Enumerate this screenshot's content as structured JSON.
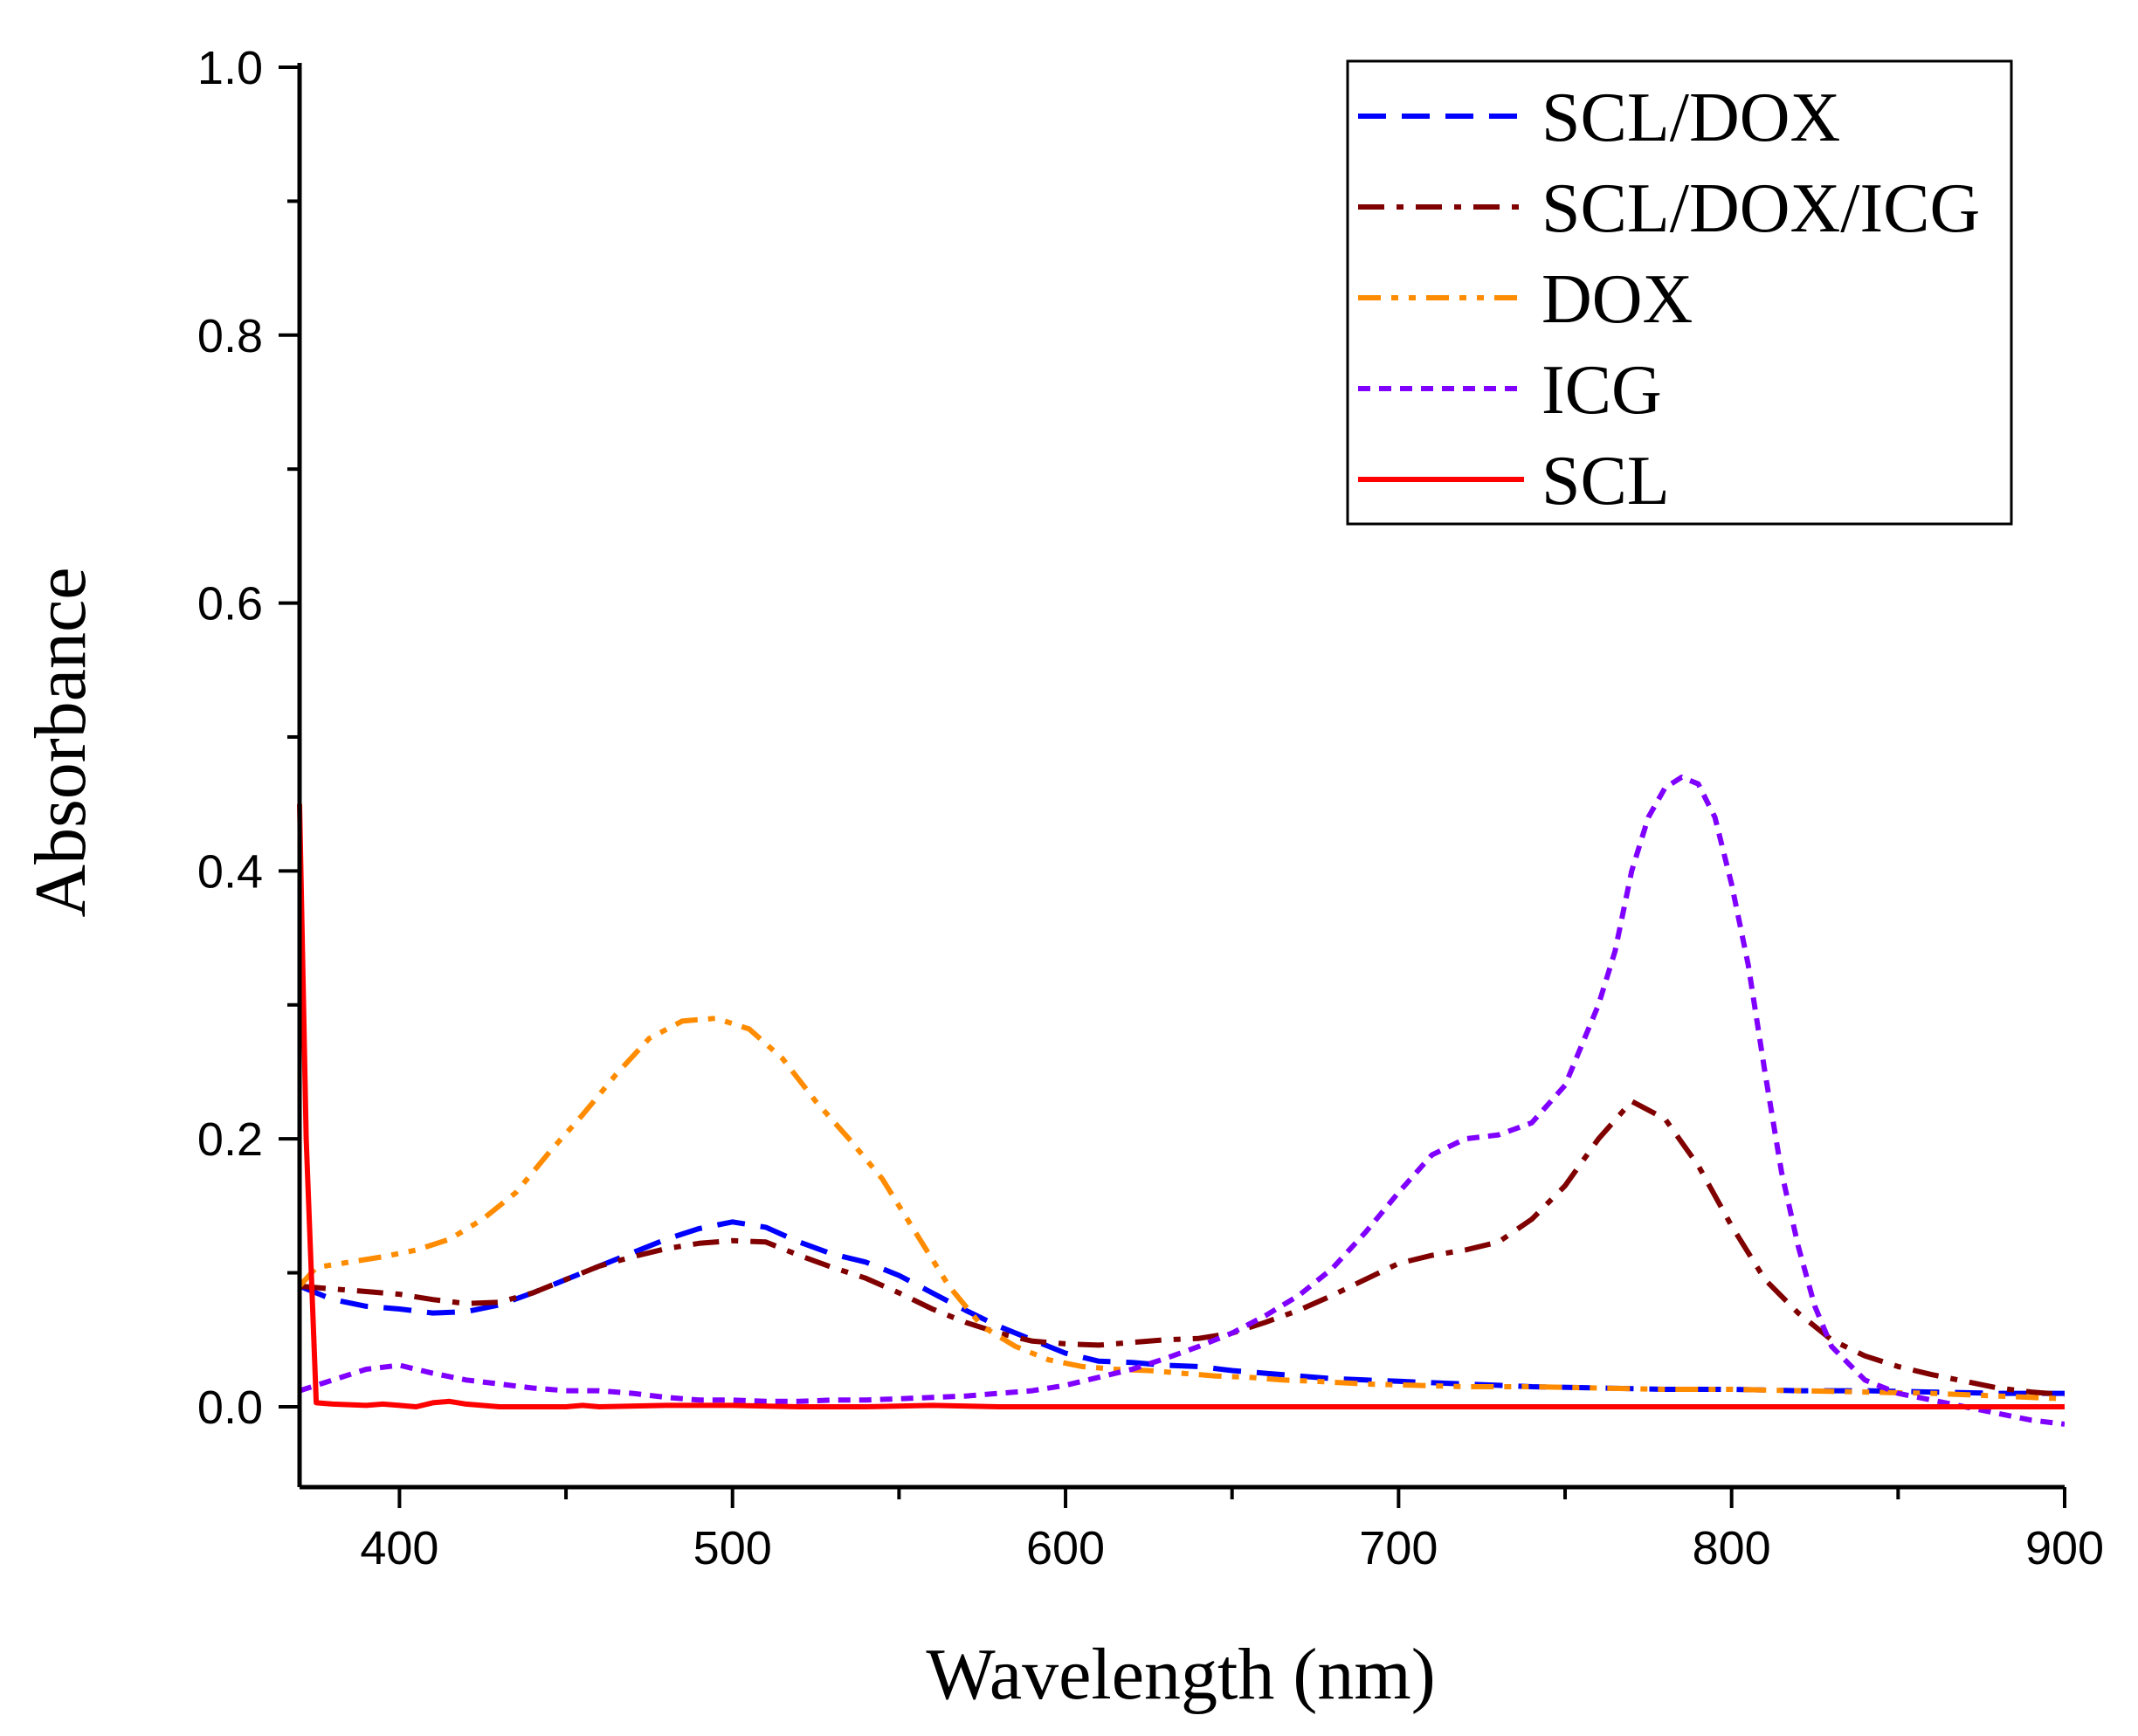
{
  "chart_data": {
    "type": "line",
    "title": "",
    "xlabel": "Wavelength (nm)",
    "ylabel": "Absorbance",
    "xlim": [
      370,
      900
    ],
    "ylim": [
      -0.06,
      1.0
    ],
    "xticks": [
      400,
      500,
      600,
      700,
      800,
      900
    ],
    "xtick_labels": [
      "400",
      "500",
      "600",
      "700",
      "800",
      "900"
    ],
    "yticks": [
      0.0,
      0.2,
      0.4,
      0.6,
      0.8,
      1.0
    ],
    "ytick_labels": [
      "0.0",
      "0.2",
      "0.4",
      "0.6",
      "0.8",
      "1.0"
    ],
    "grid": false,
    "legend_position": "top-right",
    "series": [
      {
        "name": "SCL/DOX",
        "color": "#0000ff",
        "dash": "dash",
        "points": [
          [
            370,
            0.09
          ],
          [
            380,
            0.08
          ],
          [
            390,
            0.075
          ],
          [
            400,
            0.073
          ],
          [
            410,
            0.07
          ],
          [
            420,
            0.071
          ],
          [
            430,
            0.076
          ],
          [
            440,
            0.085
          ],
          [
            450,
            0.095
          ],
          [
            460,
            0.105
          ],
          [
            470,
            0.115
          ],
          [
            480,
            0.125
          ],
          [
            490,
            0.133
          ],
          [
            500,
            0.138
          ],
          [
            510,
            0.134
          ],
          [
            520,
            0.123
          ],
          [
            530,
            0.114
          ],
          [
            540,
            0.108
          ],
          [
            550,
            0.098
          ],
          [
            560,
            0.085
          ],
          [
            570,
            0.072
          ],
          [
            580,
            0.06
          ],
          [
            590,
            0.05
          ],
          [
            600,
            0.04
          ],
          [
            610,
            0.034
          ],
          [
            620,
            0.033
          ],
          [
            630,
            0.031
          ],
          [
            640,
            0.03
          ],
          [
            650,
            0.027
          ],
          [
            660,
            0.025
          ],
          [
            670,
            0.023
          ],
          [
            680,
            0.021
          ],
          [
            690,
            0.02
          ],
          [
            700,
            0.019
          ],
          [
            710,
            0.018
          ],
          [
            720,
            0.017
          ],
          [
            730,
            0.016
          ],
          [
            740,
            0.015
          ],
          [
            760,
            0.014
          ],
          [
            780,
            0.013
          ],
          [
            800,
            0.013
          ],
          [
            820,
            0.012
          ],
          [
            840,
            0.012
          ],
          [
            860,
            0.011
          ],
          [
            880,
            0.01
          ],
          [
            900,
            0.01
          ]
        ]
      },
      {
        "name": "SCL/DOX/ICG",
        "color": "#800000",
        "dash": "dashdot",
        "points": [
          [
            370,
            0.09
          ],
          [
            380,
            0.088
          ],
          [
            390,
            0.086
          ],
          [
            400,
            0.084
          ],
          [
            410,
            0.08
          ],
          [
            420,
            0.077
          ],
          [
            430,
            0.078
          ],
          [
            440,
            0.085
          ],
          [
            450,
            0.095
          ],
          [
            460,
            0.105
          ],
          [
            470,
            0.112
          ],
          [
            480,
            0.118
          ],
          [
            490,
            0.122
          ],
          [
            500,
            0.124
          ],
          [
            510,
            0.123
          ],
          [
            520,
            0.113
          ],
          [
            530,
            0.104
          ],
          [
            540,
            0.096
          ],
          [
            550,
            0.085
          ],
          [
            560,
            0.073
          ],
          [
            570,
            0.063
          ],
          [
            580,
            0.055
          ],
          [
            590,
            0.049
          ],
          [
            600,
            0.047
          ],
          [
            610,
            0.046
          ],
          [
            620,
            0.048
          ],
          [
            630,
            0.05
          ],
          [
            640,
            0.051
          ],
          [
            650,
            0.055
          ],
          [
            660,
            0.063
          ],
          [
            670,
            0.072
          ],
          [
            680,
            0.083
          ],
          [
            690,
            0.095
          ],
          [
            700,
            0.107
          ],
          [
            710,
            0.113
          ],
          [
            720,
            0.117
          ],
          [
            730,
            0.123
          ],
          [
            740,
            0.14
          ],
          [
            750,
            0.165
          ],
          [
            760,
            0.2
          ],
          [
            770,
            0.228
          ],
          [
            780,
            0.215
          ],
          [
            790,
            0.18
          ],
          [
            800,
            0.135
          ],
          [
            810,
            0.095
          ],
          [
            820,
            0.07
          ],
          [
            830,
            0.05
          ],
          [
            840,
            0.038
          ],
          [
            850,
            0.03
          ],
          [
            860,
            0.024
          ],
          [
            870,
            0.019
          ],
          [
            880,
            0.014
          ],
          [
            890,
            0.011
          ],
          [
            900,
            0.009
          ]
        ]
      },
      {
        "name": "DOX",
        "color": "#ff8c00",
        "dash": "dashdotdot",
        "points": [
          [
            370,
            0.09
          ],
          [
            375,
            0.104
          ],
          [
            385,
            0.108
          ],
          [
            395,
            0.112
          ],
          [
            405,
            0.117
          ],
          [
            415,
            0.125
          ],
          [
            425,
            0.14
          ],
          [
            435,
            0.16
          ],
          [
            445,
            0.19
          ],
          [
            455,
            0.218
          ],
          [
            465,
            0.248
          ],
          [
            475,
            0.275
          ],
          [
            485,
            0.288
          ],
          [
            495,
            0.29
          ],
          [
            505,
            0.282
          ],
          [
            515,
            0.26
          ],
          [
            525,
            0.228
          ],
          [
            535,
            0.2
          ],
          [
            545,
            0.17
          ],
          [
            555,
            0.13
          ],
          [
            565,
            0.09
          ],
          [
            575,
            0.06
          ],
          [
            585,
            0.045
          ],
          [
            595,
            0.035
          ],
          [
            605,
            0.03
          ],
          [
            615,
            0.028
          ],
          [
            625,
            0.027
          ],
          [
            635,
            0.025
          ],
          [
            645,
            0.023
          ],
          [
            655,
            0.022
          ],
          [
            665,
            0.02
          ],
          [
            675,
            0.019
          ],
          [
            690,
            0.017
          ],
          [
            705,
            0.016
          ],
          [
            720,
            0.015
          ],
          [
            740,
            0.015
          ],
          [
            760,
            0.014
          ],
          [
            780,
            0.013
          ],
          [
            800,
            0.013
          ],
          [
            820,
            0.012
          ],
          [
            840,
            0.011
          ],
          [
            860,
            0.01
          ],
          [
            880,
            0.008
          ],
          [
            900,
            0.006
          ]
        ]
      },
      {
        "name": "ICG",
        "color": "#8000ff",
        "dash": "shortdash",
        "points": [
          [
            370,
            0.012
          ],
          [
            380,
            0.02
          ],
          [
            390,
            0.028
          ],
          [
            400,
            0.031
          ],
          [
            410,
            0.025
          ],
          [
            420,
            0.02
          ],
          [
            430,
            0.017
          ],
          [
            440,
            0.014
          ],
          [
            450,
            0.012
          ],
          [
            460,
            0.012
          ],
          [
            470,
            0.01
          ],
          [
            480,
            0.007
          ],
          [
            490,
            0.005
          ],
          [
            500,
            0.005
          ],
          [
            510,
            0.004
          ],
          [
            520,
            0.004
          ],
          [
            530,
            0.005
          ],
          [
            540,
            0.005
          ],
          [
            550,
            0.006
          ],
          [
            560,
            0.007
          ],
          [
            570,
            0.008
          ],
          [
            580,
            0.01
          ],
          [
            590,
            0.012
          ],
          [
            600,
            0.016
          ],
          [
            610,
            0.022
          ],
          [
            620,
            0.028
          ],
          [
            630,
            0.036
          ],
          [
            640,
            0.045
          ],
          [
            650,
            0.055
          ],
          [
            660,
            0.068
          ],
          [
            670,
            0.083
          ],
          [
            680,
            0.103
          ],
          [
            690,
            0.13
          ],
          [
            700,
            0.16
          ],
          [
            710,
            0.188
          ],
          [
            720,
            0.2
          ],
          [
            730,
            0.203
          ],
          [
            740,
            0.212
          ],
          [
            750,
            0.24
          ],
          [
            760,
            0.3
          ],
          [
            765,
            0.34
          ],
          [
            770,
            0.4
          ],
          [
            775,
            0.44
          ],
          [
            780,
            0.462
          ],
          [
            785,
            0.47
          ],
          [
            790,
            0.465
          ],
          [
            795,
            0.44
          ],
          [
            800,
            0.39
          ],
          [
            805,
            0.33
          ],
          [
            810,
            0.25
          ],
          [
            815,
            0.175
          ],
          [
            820,
            0.12
          ],
          [
            825,
            0.075
          ],
          [
            830,
            0.045
          ],
          [
            840,
            0.02
          ],
          [
            850,
            0.01
          ],
          [
            860,
            0.005
          ],
          [
            870,
            0.0
          ],
          [
            880,
            -0.005
          ],
          [
            890,
            -0.01
          ],
          [
            900,
            -0.013
          ]
        ]
      },
      {
        "name": "SCL",
        "color": "#ff0000",
        "dash": "solid",
        "points": [
          [
            370,
            0.45
          ],
          [
            372,
            0.2
          ],
          [
            375,
            0.003
          ],
          [
            380,
            0.002
          ],
          [
            390,
            0.001
          ],
          [
            395,
            0.002
          ],
          [
            400,
            0.001
          ],
          [
            405,
            0.0
          ],
          [
            410,
            0.003
          ],
          [
            415,
            0.004
          ],
          [
            420,
            0.002
          ],
          [
            430,
            0.0
          ],
          [
            440,
            0.0
          ],
          [
            450,
            0.0
          ],
          [
            455,
            0.001
          ],
          [
            460,
            0.0
          ],
          [
            480,
            0.001
          ],
          [
            500,
            0.001
          ],
          [
            520,
            0.0
          ],
          [
            540,
            0.0
          ],
          [
            560,
            0.001
          ],
          [
            580,
            0.0
          ],
          [
            600,
            0.0
          ],
          [
            620,
            0.0
          ],
          [
            640,
            0.0
          ],
          [
            660,
            0.0
          ],
          [
            680,
            0.0
          ],
          [
            700,
            0.0
          ],
          [
            720,
            0.0
          ],
          [
            740,
            0.0
          ],
          [
            760,
            0.0
          ],
          [
            780,
            0.0
          ],
          [
            800,
            0.0
          ],
          [
            820,
            0.0
          ],
          [
            840,
            0.0
          ],
          [
            860,
            0.0
          ],
          [
            880,
            0.0
          ],
          [
            900,
            0.0
          ]
        ]
      }
    ]
  }
}
